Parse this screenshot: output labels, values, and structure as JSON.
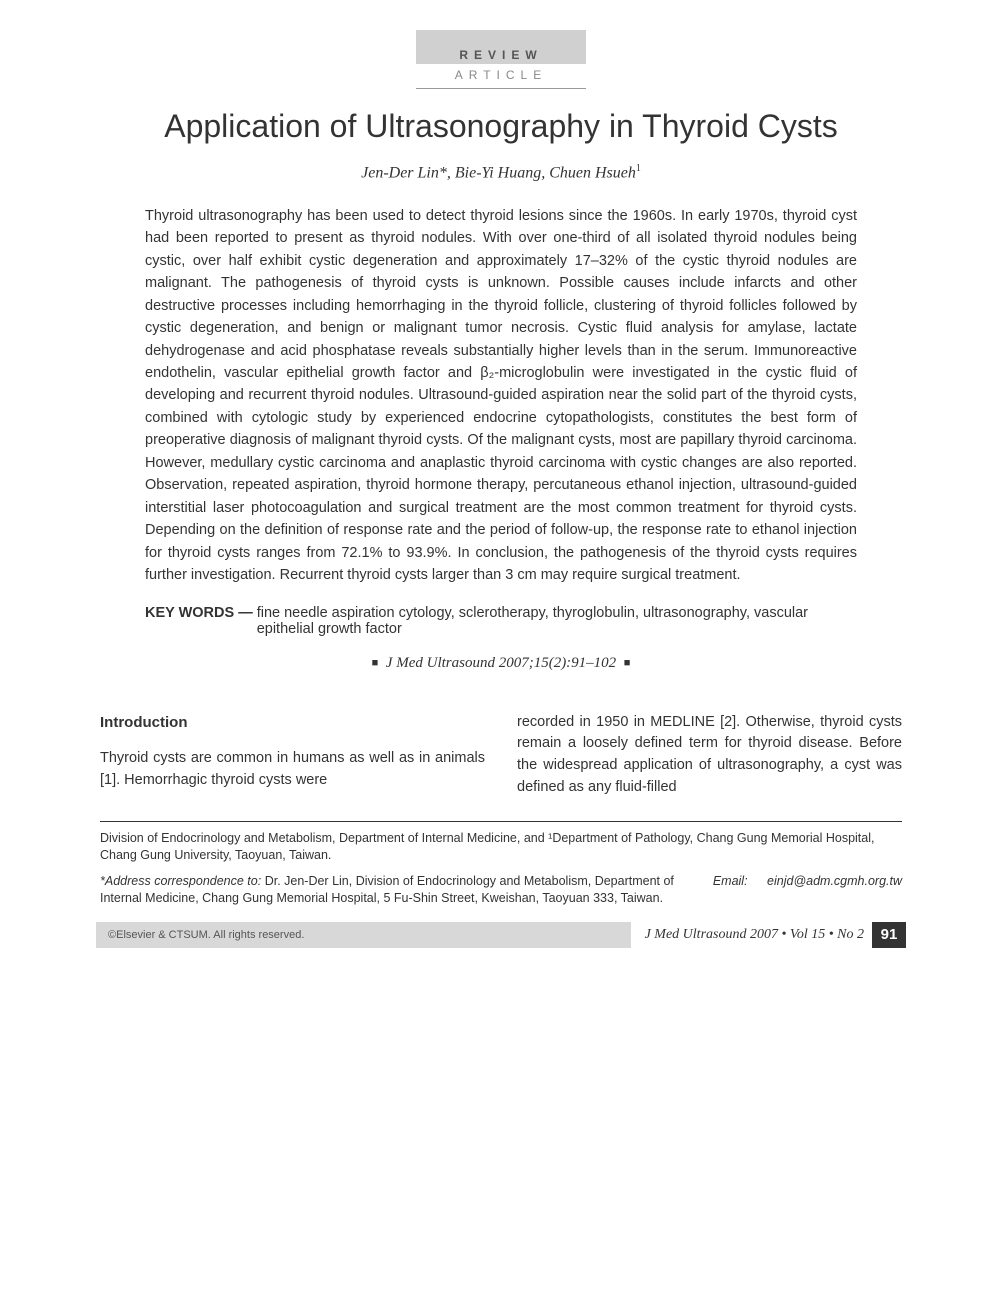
{
  "article_type": {
    "line1": "REVIEW",
    "line2": "ARTICLE"
  },
  "title": "Application of Ultrasonography in Thyroid Cysts",
  "authors_html": "Jen-Der Lin*, Bie-Yi Huang, Chuen Hsueh",
  "authors_sup": "1",
  "abstract": "Thyroid ultrasonography has been used to detect thyroid lesions since the 1960s. In early 1970s, thyroid cyst had been reported to present as thyroid nodules. With over one-third of all isolated thyroid nodules being cystic, over half exhibit cystic degeneration and approximately 17–32% of the cystic thyroid nodules are malignant. The pathogenesis of thyroid cysts is unknown. Possible causes include infarcts and other destructive processes including hemorrhaging in the thyroid follicle, clustering of thyroid follicles followed by cystic degeneration, and benign or malignant tumor necrosis. Cystic fluid analysis for amylase, lactate dehydrogenase and acid phosphatase reveals substantially higher levels than in the serum. Immunoreactive endothelin, vascular epithelial growth factor and β₂-microglobulin were investigated in the cystic fluid of developing and recurrent thyroid nodules. Ultrasound-guided aspiration near the solid part of the thyroid cysts, combined with cytologic study by experienced endocrine cytopathologists, constitutes the best form of preoperative diagnosis of malignant thyroid cysts. Of the malignant cysts, most are papillary thyroid carcinoma. However, medullary cystic carcinoma and anaplastic thyroid carcinoma with cystic changes are also reported. Observation, repeated aspiration, thyroid hormone therapy, percutaneous ethanol injection, ultrasound-guided interstitial laser photocoagulation and surgical treatment are the most common treatment for thyroid cysts. Depending on the definition of response rate and the period of follow-up, the response rate to ethanol injection for thyroid cysts ranges from 72.1% to 93.9%. In conclusion, the pathogenesis of the thyroid cysts requires further investigation. Recurrent thyroid cysts larger than 3 cm may require surgical treatment.",
  "keywords": {
    "label": "KEY WORDS —",
    "text": "fine needle aspiration cytology, sclerotherapy, thyroglobulin, ultrasonography, vascular epithelial growth factor"
  },
  "citation": "J Med Ultrasound 2007;15(2):91–102",
  "section_heading": "Introduction",
  "body_col1": "Thyroid cysts are common in humans as well as in animals [1]. Hemorrhagic thyroid cysts were",
  "body_col2": "recorded in 1950 in MEDLINE [2]. Otherwise, thyroid cysts remain a loosely defined term for thyroid disease. Before the widespread application of ultrasonography, a cyst was defined as any fluid-filled",
  "affiliation": "Division of Endocrinology and Metabolism, Department of Internal Medicine, and ¹Department of Pathology, Chang Gung Memorial Hospital, Chang Gung University, Taoyuan, Taiwan.",
  "correspondence": {
    "label": "*Address correspondence to:",
    "text": " Dr. Jen-Der Lin, Division of Endocrinology and Metabolism, Department of Internal Medicine, Chang Gung Memorial Hospital, 5 Fu-Shin Street, Kweishan, Taoyuan 333, Taiwan.",
    "email_label": "Email: ",
    "email": "einjd@adm.cgmh.org.tw"
  },
  "footer": {
    "copyright": "©Elsevier & CTSUM. All rights reserved.",
    "journal": "J Med Ultrasound 2007 • Vol 15 • No 2",
    "page": "91"
  },
  "colors": {
    "box_bg": "#d0d0d0",
    "text": "#333333",
    "muted": "#888888",
    "footer_bg": "#d8d8d8",
    "pagenum_bg": "#333333"
  }
}
